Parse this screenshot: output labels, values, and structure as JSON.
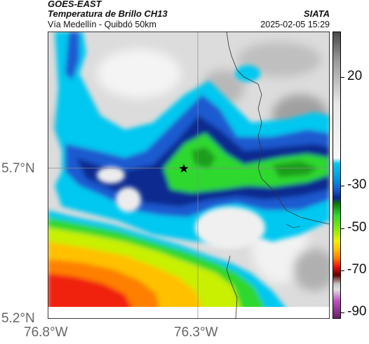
{
  "header": {
    "product": "GOES-EAST",
    "title": "Temperatura de Brillo CH13",
    "source": "SIATA",
    "subtitle": "Vía Medellín - Quibdó 50km",
    "timestamp": "2025-02-05 15:29"
  },
  "axes": {
    "lat_ticks": [
      "5.7°N",
      "5.2°N"
    ],
    "lon_ticks": [
      "76.8°W",
      "76.3°W"
    ]
  },
  "colorbar": {
    "labels": [
      "20",
      "-30",
      "-50",
      "-70",
      "-90"
    ],
    "colors": {
      "gray_light": "#e8e8e8",
      "gray_dark": "#4a4a4a",
      "cyan": "#00c8f0",
      "blue": "#1a5ad0",
      "navy": "#082a90",
      "green": "#2ed82e",
      "yellow": "#f0f000",
      "orange": "#ff8000",
      "red": "#f01010",
      "dark_red": "#600000",
      "magenta": "#c050c0"
    }
  },
  "map": {
    "marker_icon": "star-icon",
    "center_lat": 5.7,
    "center_lon": -76.3
  }
}
